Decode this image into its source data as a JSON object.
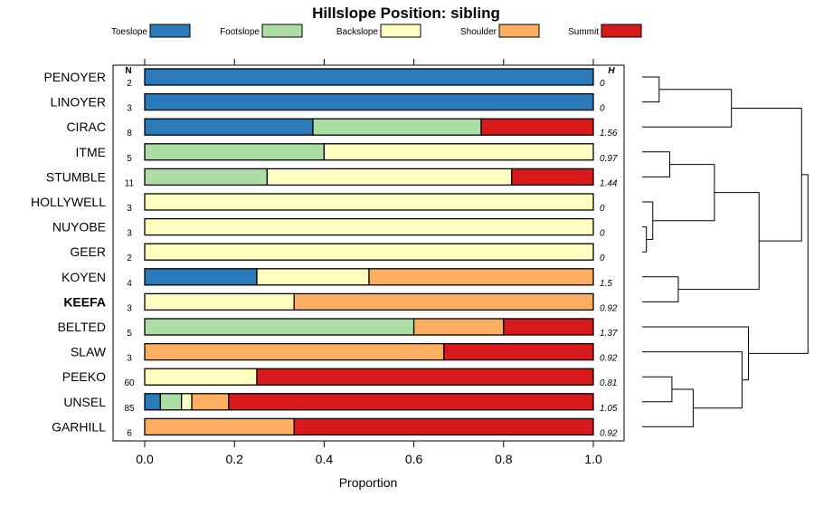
{
  "chart_data": {
    "type": "bar",
    "subtype": "stacked-horizontal-proportion",
    "title": "Hillslope Position: sibling",
    "xlabel": "Proportion",
    "xlim": [
      0,
      1
    ],
    "xticks": [
      "0.0",
      "0.2",
      "0.4",
      "0.6",
      "0.8",
      "1.0"
    ],
    "n_header": "N",
    "h_header": "H",
    "legend": [
      {
        "name": "Toeslope",
        "color": "#2b7bba"
      },
      {
        "name": "Footslope",
        "color": "#abdda4"
      },
      {
        "name": "Backslope",
        "color": "#ffffbf"
      },
      {
        "name": "Shoulder",
        "color": "#fdae61"
      },
      {
        "name": "Summit",
        "color": "#d7191c"
      }
    ],
    "rows": [
      {
        "name": "PENOYER",
        "n": "2",
        "h": "0",
        "bold": false,
        "values": [
          1,
          0,
          0,
          0,
          0
        ]
      },
      {
        "name": "LINOYER",
        "n": "3",
        "h": "0",
        "bold": false,
        "values": [
          1,
          0,
          0,
          0,
          0
        ]
      },
      {
        "name": "CIRAC",
        "n": "8",
        "h": "1.56",
        "bold": false,
        "values": [
          0.375,
          0.375,
          0,
          0,
          0.25
        ]
      },
      {
        "name": "ITME",
        "n": "5",
        "h": "0.97",
        "bold": false,
        "values": [
          0,
          0.4,
          0.6,
          0,
          0
        ]
      },
      {
        "name": "STUMBLE",
        "n": "11",
        "h": "1.44",
        "bold": false,
        "values": [
          0,
          0.273,
          0.545,
          0,
          0.182
        ]
      },
      {
        "name": "HOLLYWELL",
        "n": "3",
        "h": "0",
        "bold": false,
        "values": [
          0,
          0,
          1,
          0,
          0
        ]
      },
      {
        "name": "NUYOBE",
        "n": "3",
        "h": "0",
        "bold": false,
        "values": [
          0,
          0,
          1,
          0,
          0
        ]
      },
      {
        "name": "GEER",
        "n": "2",
        "h": "0",
        "bold": false,
        "values": [
          0,
          0,
          1,
          0,
          0
        ]
      },
      {
        "name": "KOYEN",
        "n": "4",
        "h": "1.5",
        "bold": false,
        "values": [
          0.25,
          0,
          0.25,
          0.5,
          0
        ]
      },
      {
        "name": "KEEFA",
        "n": "3",
        "h": "0.92",
        "bold": true,
        "values": [
          0,
          0,
          0.333,
          0.667,
          0
        ]
      },
      {
        "name": "BELTED",
        "n": "5",
        "h": "1.37",
        "bold": false,
        "values": [
          0,
          0.6,
          0,
          0.2,
          0.2
        ]
      },
      {
        "name": "SLAW",
        "n": "3",
        "h": "0.92",
        "bold": false,
        "values": [
          0,
          0,
          0,
          0.667,
          0.333
        ]
      },
      {
        "name": "PEEKO",
        "n": "60",
        "h": "0.81",
        "bold": false,
        "values": [
          0,
          0,
          0.25,
          0,
          0.75
        ]
      },
      {
        "name": "UNSEL",
        "n": "85",
        "h": "1.05",
        "bold": false,
        "values": [
          0.035,
          0.047,
          0.023,
          0.082,
          0.813
        ]
      },
      {
        "name": "GARHILL",
        "n": "6",
        "h": "0.92",
        "bold": false,
        "values": [
          0,
          0,
          0,
          0.333,
          0.667
        ]
      }
    ],
    "dendrogram": {
      "leaves": [
        "PENOYER",
        "LINOYER",
        "CIRAC",
        "ITME",
        "STUMBLE",
        "HOLLYWELL",
        "NUYOBE",
        "GEER",
        "KOYEN",
        "KEEFA",
        "BELTED",
        "SLAW",
        "PEEKO",
        "UNSEL",
        "GARHILL"
      ],
      "merges": [
        {
          "left": "PENOYER",
          "right": "LINOYER",
          "height": 0.08
        },
        {
          "left": 0,
          "right": "CIRAC",
          "height": 0.42
        },
        {
          "left": "ITME",
          "right": "STUMBLE",
          "height": 0.13
        },
        {
          "left": "NUYOBE",
          "right": "GEER",
          "height": 0.02
        },
        {
          "left": "HOLLYWELL",
          "right": 3,
          "height": 0.05
        },
        {
          "left": 2,
          "right": 4,
          "height": 0.34
        },
        {
          "left": "KOYEN",
          "right": "KEEFA",
          "height": 0.17
        },
        {
          "left": 5,
          "right": 6,
          "height": 0.55
        },
        {
          "left": 1,
          "right": 7,
          "height": 0.75
        },
        {
          "left": "PEEKO",
          "right": "UNSEL",
          "height": 0.14
        },
        {
          "left": 9,
          "right": "GARHILL",
          "height": 0.24
        },
        {
          "left": "SLAW",
          "right": 10,
          "height": 0.47
        },
        {
          "left": "BELTED",
          "right": 11,
          "height": 0.5
        },
        {
          "left": 8,
          "right": 12,
          "height": 0.78
        }
      ]
    }
  }
}
